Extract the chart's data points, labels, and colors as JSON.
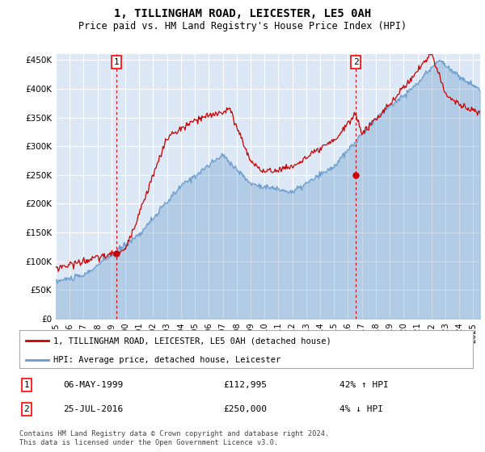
{
  "title": "1, TILLINGHAM ROAD, LEICESTER, LE5 0AH",
  "subtitle": "Price paid vs. HM Land Registry's House Price Index (HPI)",
  "ylabel_ticks": [
    "£0",
    "£50K",
    "£100K",
    "£150K",
    "£200K",
    "£250K",
    "£300K",
    "£350K",
    "£400K",
    "£450K"
  ],
  "ytick_values": [
    0,
    50000,
    100000,
    150000,
    200000,
    250000,
    300000,
    350000,
    400000,
    450000
  ],
  "ylim": [
    0,
    460000
  ],
  "xlim_start": 1995.0,
  "xlim_end": 2025.5,
  "hpi_color": "#6699cc",
  "price_color": "#cc0000",
  "bg_color": "#dce8f5",
  "grid_color": "#ffffff",
  "marker1_year": 1999.35,
  "marker1_price": 112995,
  "marker1_label": "06-MAY-1999",
  "marker1_amount": "£112,995",
  "marker1_hpi": "42% ↑ HPI",
  "marker2_year": 2016.56,
  "marker2_price": 250000,
  "marker2_label": "25-JUL-2016",
  "marker2_amount": "£250,000",
  "marker2_hpi": "4% ↓ HPI",
  "legend_line1": "1, TILLINGHAM ROAD, LEICESTER, LE5 0AH (detached house)",
  "legend_line2": "HPI: Average price, detached house, Leicester",
  "footnote": "Contains HM Land Registry data © Crown copyright and database right 2024.\nThis data is licensed under the Open Government Licence v3.0.",
  "xtick_years": [
    1995,
    1996,
    1997,
    1998,
    1999,
    2000,
    2001,
    2002,
    2003,
    2004,
    2005,
    2006,
    2007,
    2008,
    2009,
    2010,
    2011,
    2012,
    2013,
    2014,
    2015,
    2016,
    2017,
    2018,
    2019,
    2020,
    2021,
    2022,
    2023,
    2024,
    2025
  ]
}
